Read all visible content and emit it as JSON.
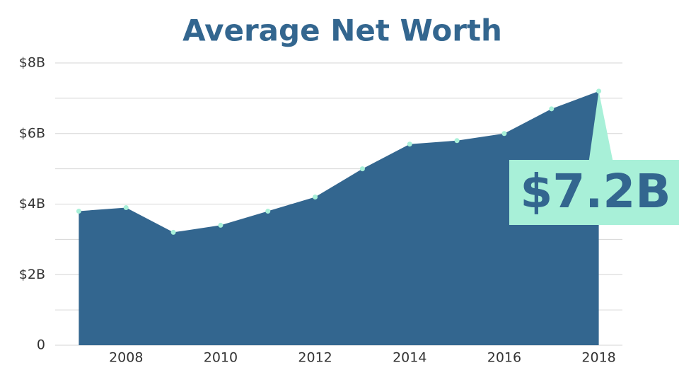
{
  "chart_data": {
    "type": "area",
    "title": "Average Net Worth",
    "x": [
      2007,
      2008,
      2009,
      2010,
      2011,
      2012,
      2013,
      2014,
      2015,
      2016,
      2017,
      2018
    ],
    "values": [
      3.8,
      3.9,
      3.2,
      3.4,
      3.8,
      4.2,
      5.0,
      5.7,
      5.8,
      6.0,
      6.7,
      7.2
    ],
    "value_labels": [
      null,
      null,
      null,
      null,
      null,
      null,
      null,
      null,
      null,
      null,
      null,
      "$7.2B"
    ],
    "color": "#33668f",
    "marker_color": "#a8f0d8",
    "xlim": [
      2006.5,
      2018.5
    ],
    "xticks": [
      2008,
      2010,
      2012,
      2014,
      2016,
      2018
    ],
    "ylim": [
      0,
      8
    ],
    "yticks": [
      0,
      {
        "value": 2,
        "label": "$2B"
      },
      {
        "value": 4,
        "label": "$4B"
      },
      {
        "value": 6,
        "label": "$6B"
      },
      {
        "value": 8,
        "label": "$8B"
      }
    ],
    "minor_yticks": [
      1,
      3,
      5,
      7
    ],
    "grid": true
  }
}
